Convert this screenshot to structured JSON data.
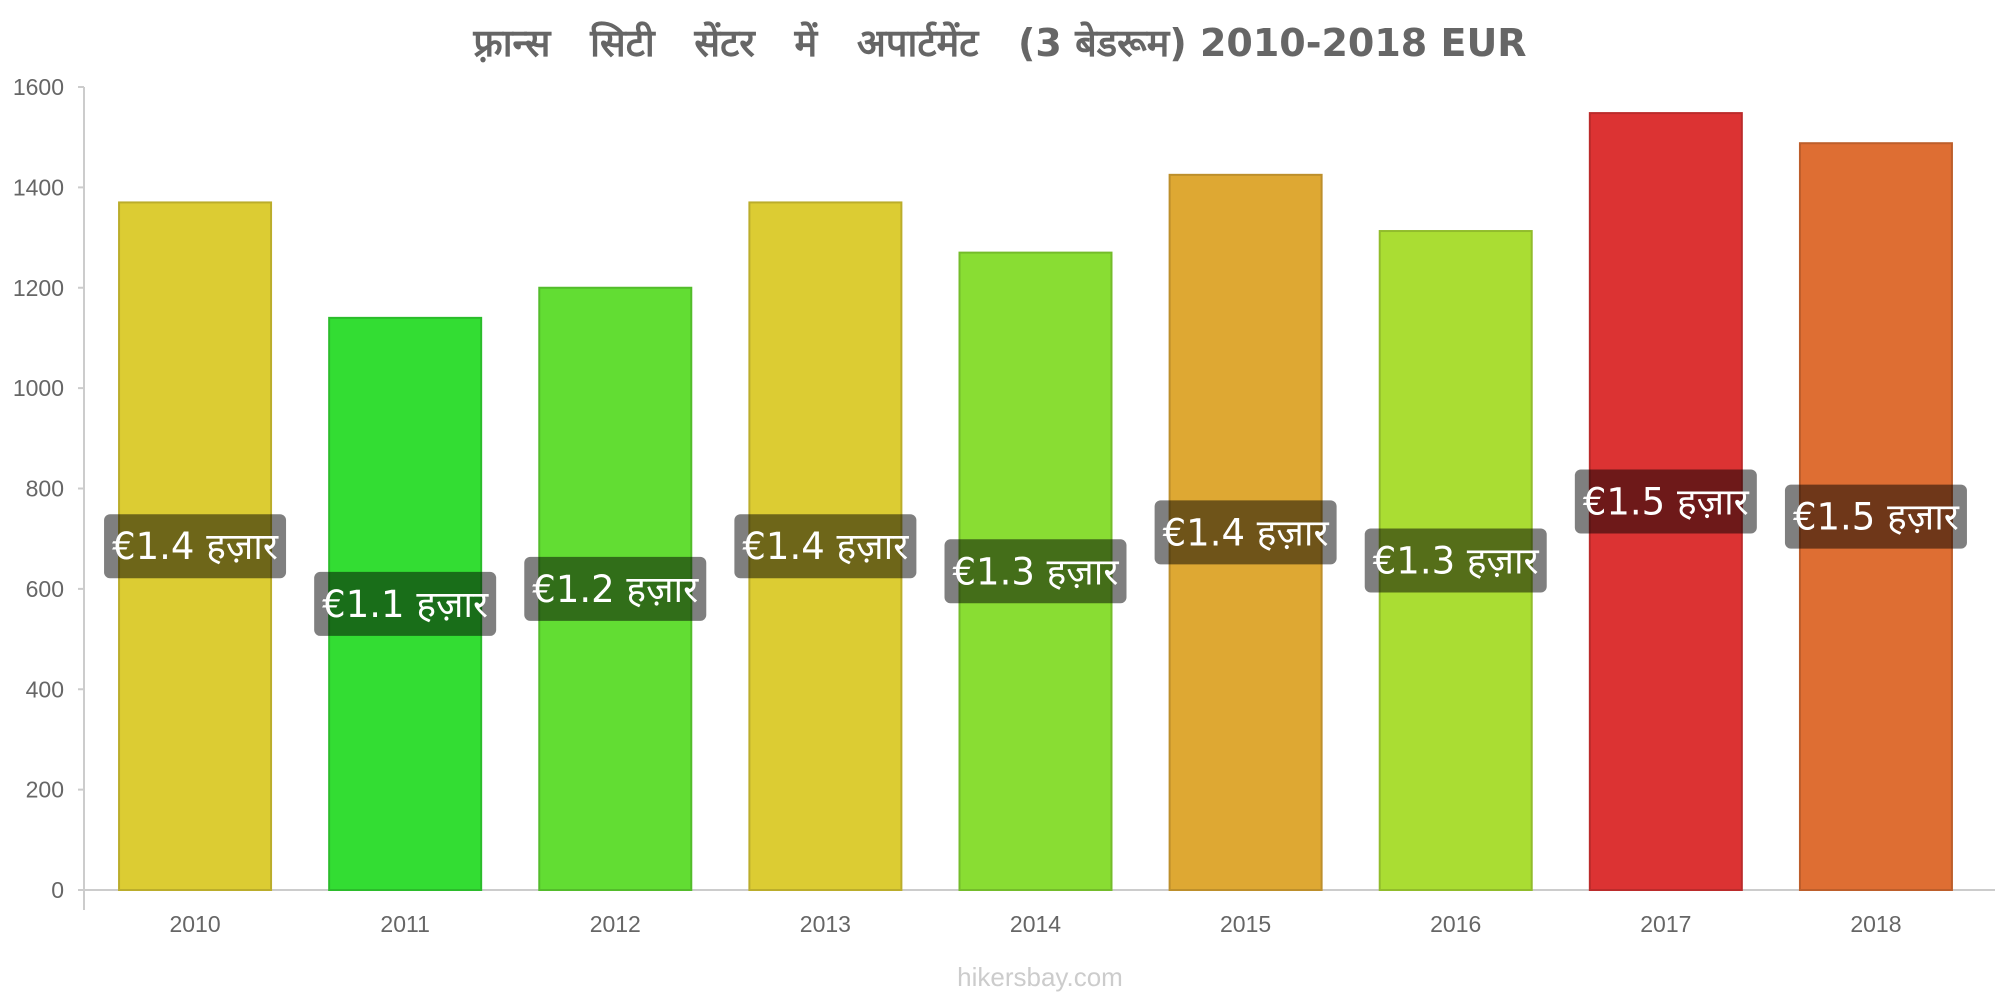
{
  "chart_data": {
    "type": "bar",
    "title": "फ़्रान्स   सिटी   सेंटर   में   अपार्टमेंट   (3 बेडरूम) 2010-2018 EUR",
    "categories": [
      "2010",
      "2011",
      "2012",
      "2013",
      "2014",
      "2015",
      "2016",
      "2017",
      "2018"
    ],
    "values": [
      1370,
      1140,
      1200,
      1370,
      1270,
      1425,
      1313,
      1548,
      1488
    ],
    "data_labels": [
      "€1.4 हज़ार",
      "€1.1 हज़ार",
      "€1.2 हज़ार",
      "€1.4 हज़ार",
      "€1.3 हज़ार",
      "€1.4 हज़ार",
      "€1.3 हज़ार",
      "€1.5 हज़ार",
      "€1.5 हज़ार"
    ],
    "colors": [
      "#dccc33",
      "#33dd33",
      "#62dd33",
      "#dccc33",
      "#89dd33",
      "#dea833",
      "#aadd33",
      "#dc3333",
      "#de6e33"
    ],
    "ylim": [
      0,
      1600
    ],
    "yticks": [
      0,
      200,
      400,
      600,
      800,
      1000,
      1200,
      1400,
      1600
    ],
    "xlabel": "",
    "ylabel": "",
    "grid": false,
    "legend": "none"
  },
  "footer": {
    "credit": "hikersbay.com"
  }
}
